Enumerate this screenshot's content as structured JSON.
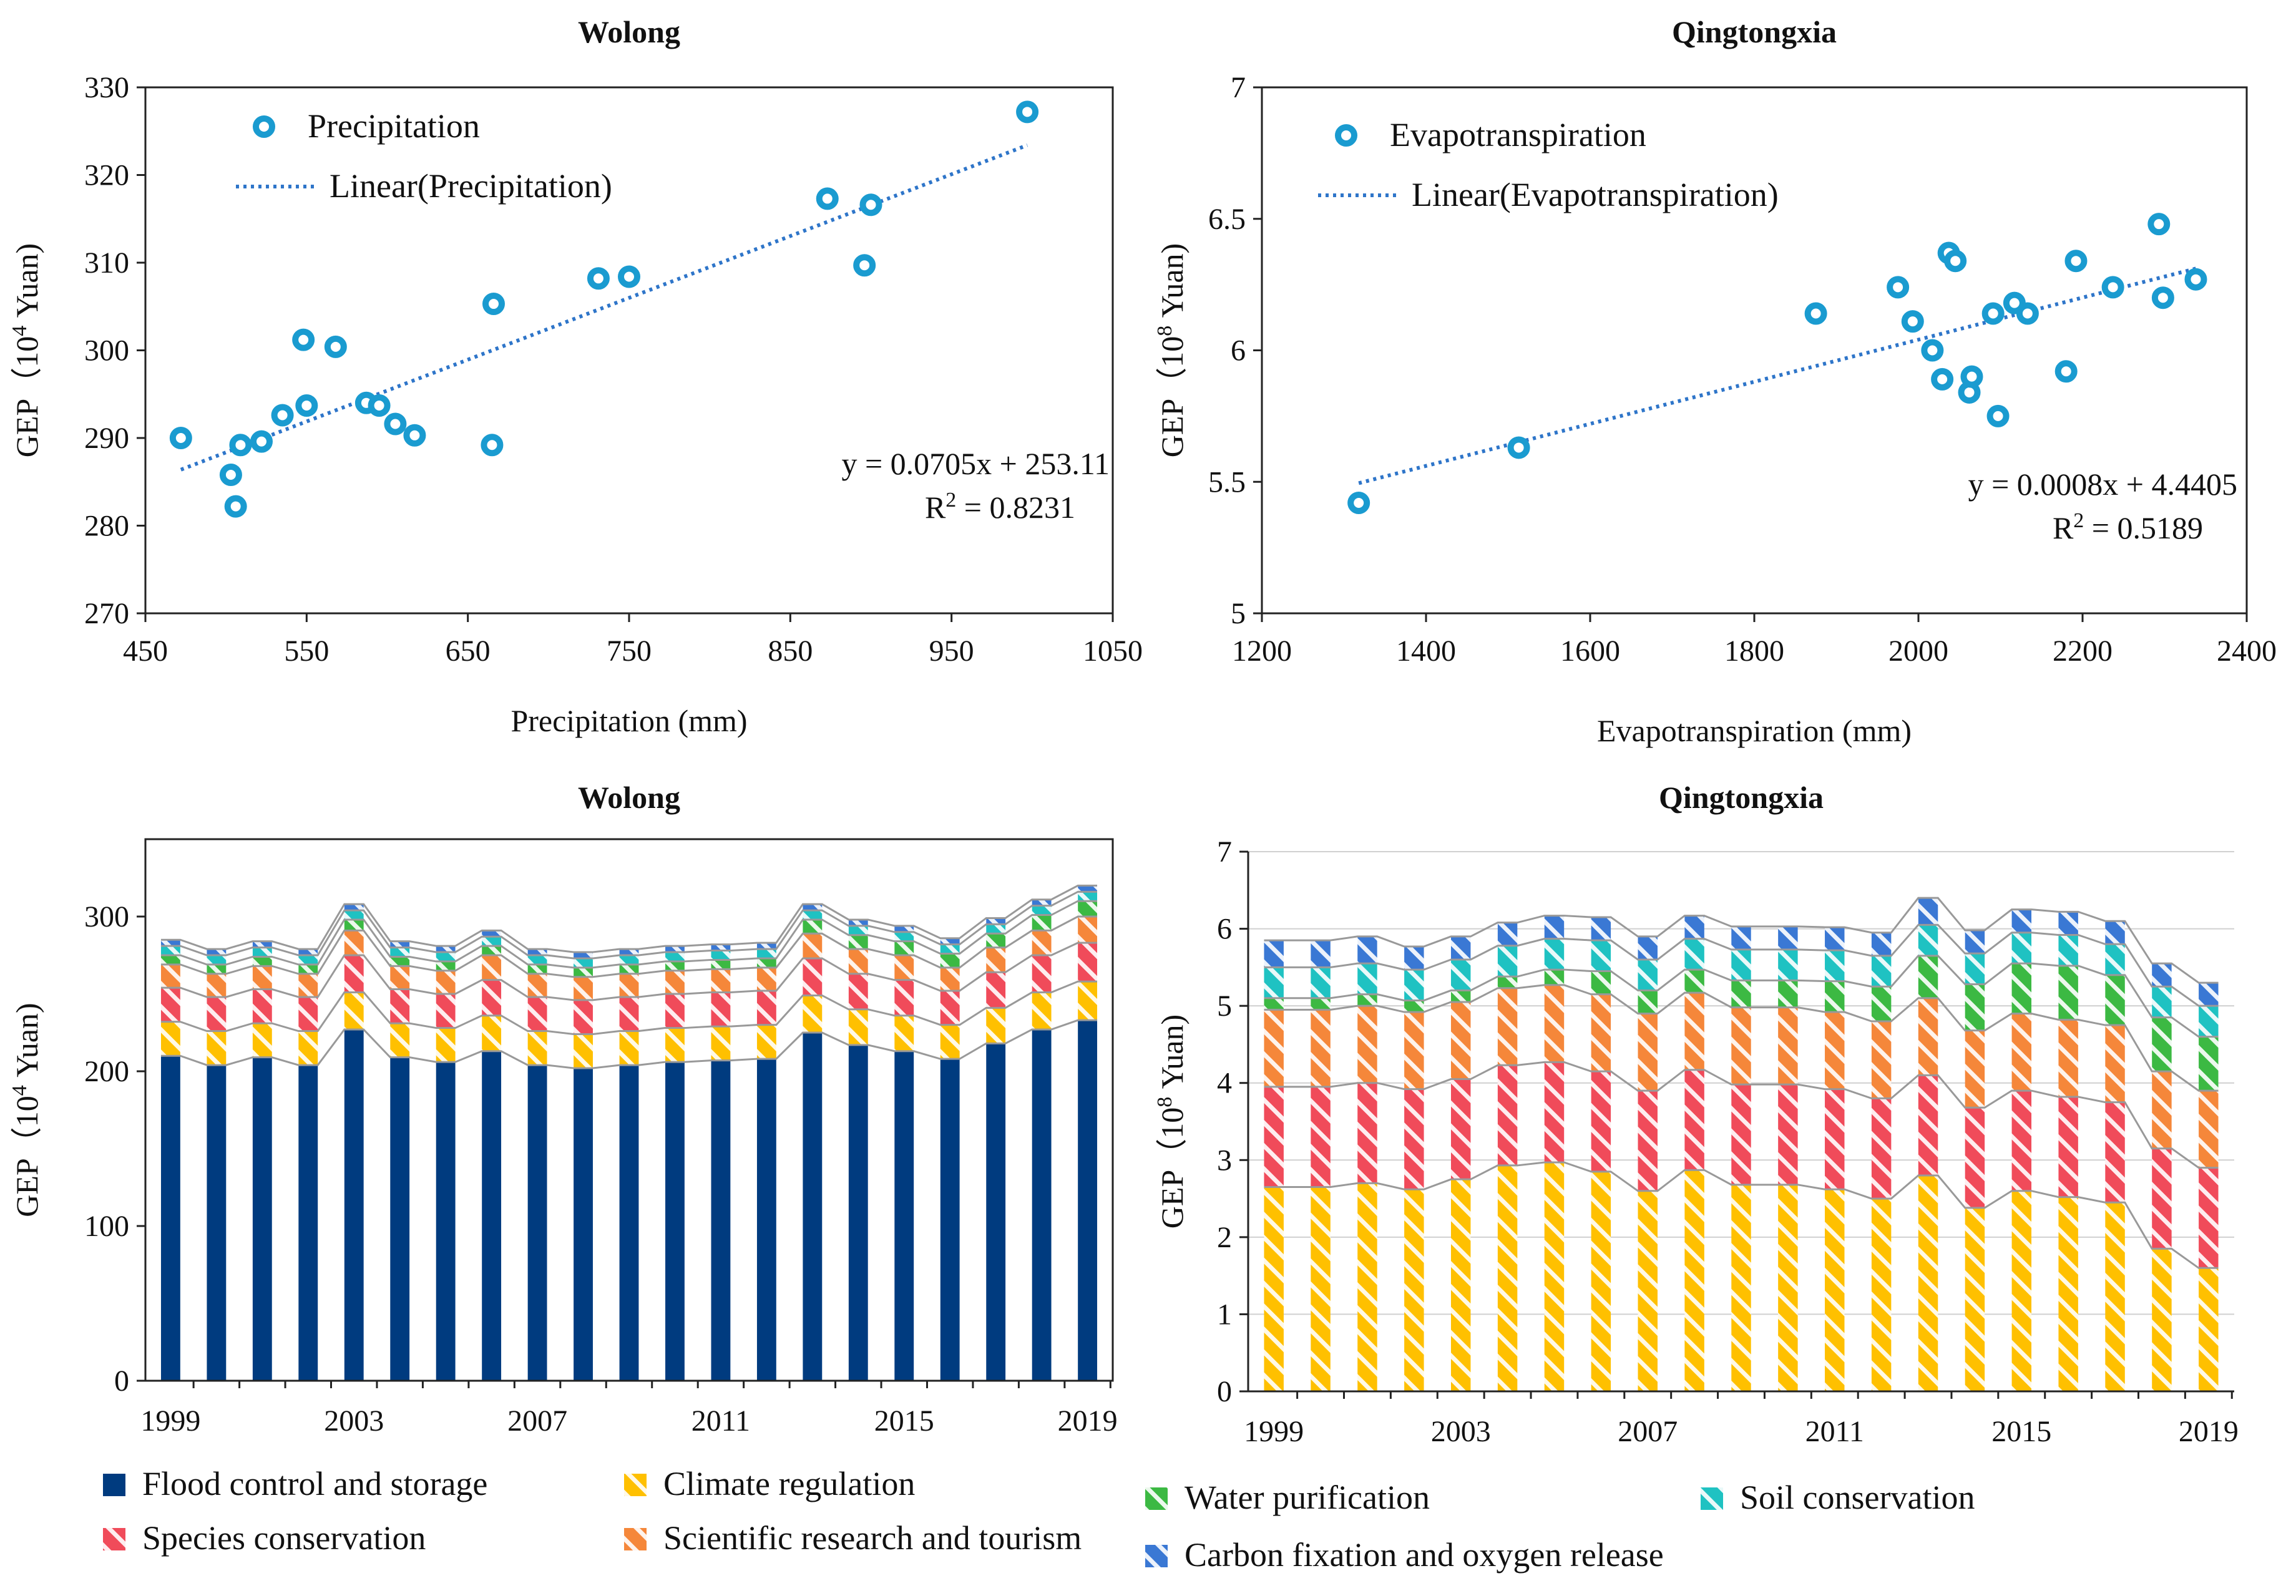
{
  "chart_data": [
    {
      "type": "scatter",
      "title": "Wolong",
      "xlabel": "Precipitation (mm)",
      "ylabel_prefix": "GEP（10",
      "ylabel_exp": "4",
      "ylabel_suffix": " Yuan)",
      "xlim": [
        450,
        1050
      ],
      "ylim": [
        270,
        330
      ],
      "xticks": [
        "450",
        "550",
        "650",
        "750",
        "850",
        "950",
        "1050"
      ],
      "yticks": [
        "270",
        "280",
        "290",
        "300",
        "310",
        "320",
        "330"
      ],
      "legend": {
        "points": "Precipitation",
        "fit": "Linear(Precipitation)"
      },
      "color": "#1a9bd0",
      "fit_color": "#2e75c9",
      "points": [
        {
          "x": 472,
          "y": 290
        },
        {
          "x": 503,
          "y": 285.8
        },
        {
          "x": 506,
          "y": 282.2
        },
        {
          "x": 509,
          "y": 289.2
        },
        {
          "x": 522,
          "y": 289.6
        },
        {
          "x": 535,
          "y": 292.6
        },
        {
          "x": 548,
          "y": 301.2
        },
        {
          "x": 550,
          "y": 293.7
        },
        {
          "x": 568,
          "y": 300.4
        },
        {
          "x": 587,
          "y": 294
        },
        {
          "x": 595,
          "y": 293.7
        },
        {
          "x": 605,
          "y": 291.6
        },
        {
          "x": 617,
          "y": 290.3
        },
        {
          "x": 665,
          "y": 289.2
        },
        {
          "x": 666,
          "y": 305.3
        },
        {
          "x": 731,
          "y": 308.2
        },
        {
          "x": 750,
          "y": 308.4
        },
        {
          "x": 873,
          "y": 317.3
        },
        {
          "x": 896,
          "y": 309.7
        },
        {
          "x": 900,
          "y": 316.6
        },
        {
          "x": 997,
          "y": 327.2
        }
      ],
      "fit": {
        "slope": 0.0705,
        "intercept": 253.11,
        "x_range": [
          472,
          997
        ]
      },
      "equation": "y = 0.0705x + 253.11",
      "r2_label": "R",
      "r2_exp": "2",
      "r2_value": " = 0.8231"
    },
    {
      "type": "scatter",
      "title": "Qingtongxia",
      "xlabel": "Evapotranspiration (mm)",
      "ylabel_prefix": "GEP（10",
      "ylabel_exp": "8",
      "ylabel_suffix": " Yuan)",
      "xlim": [
        1200,
        2400
      ],
      "ylim": [
        5,
        7
      ],
      "xticks": [
        "1200",
        "1400",
        "1600",
        "1800",
        "2000",
        "2200",
        "2400"
      ],
      "yticks": [
        "5",
        "5.5",
        "6",
        "6.5",
        "7"
      ],
      "legend": {
        "points": "Evapotranspiration",
        "fit": "Linear(Evapotranspiration)"
      },
      "color": "#1a9bd0",
      "fit_color": "#2e75c9",
      "points": [
        {
          "x": 1318,
          "y": 5.42
        },
        {
          "x": 1513,
          "y": 5.63
        },
        {
          "x": 1875,
          "y": 6.14
        },
        {
          "x": 1975,
          "y": 6.24
        },
        {
          "x": 1993,
          "y": 6.11
        },
        {
          "x": 2017,
          "y": 6.0
        },
        {
          "x": 2029,
          "y": 5.89
        },
        {
          "x": 2037,
          "y": 6.37
        },
        {
          "x": 2045,
          "y": 6.34
        },
        {
          "x": 2062,
          "y": 5.84
        },
        {
          "x": 2065,
          "y": 5.9
        },
        {
          "x": 2091,
          "y": 6.14
        },
        {
          "x": 2097,
          "y": 5.75
        },
        {
          "x": 2117,
          "y": 6.18
        },
        {
          "x": 2133,
          "y": 6.14
        },
        {
          "x": 2180,
          "y": 5.92
        },
        {
          "x": 2192,
          "y": 6.34
        },
        {
          "x": 2237,
          "y": 6.24
        },
        {
          "x": 2293,
          "y": 6.48
        },
        {
          "x": 2298,
          "y": 6.2
        },
        {
          "x": 2338,
          "y": 6.27
        }
      ],
      "fit": {
        "slope": 0.0008,
        "intercept": 4.4405,
        "x_range": [
          1318,
          2338
        ]
      },
      "equation": "y = 0.0008x + 4.4405",
      "r2_label": "R",
      "r2_exp": "2",
      "r2_value": " = 0.5189"
    },
    {
      "type": "bar",
      "stacked": true,
      "title": "Wolong",
      "ylabel_prefix": "GEP（10",
      "ylabel_exp": "4",
      "ylabel_suffix": " Yuan)",
      "ylim": [
        0,
        350
      ],
      "yticks": [
        "0",
        "100",
        "200",
        "300"
      ],
      "categories": [
        "1999",
        "2000",
        "2001",
        "2002",
        "2003",
        "2004",
        "2005",
        "2006",
        "2007",
        "2008",
        "2009",
        "2010",
        "2011",
        "2012",
        "2013",
        "2014",
        "2015",
        "2016",
        "2017",
        "2018",
        "2019"
      ],
      "xtick_labels": [
        "1999",
        "2003",
        "2007",
        "2011",
        "2015",
        "2019"
      ],
      "series": [
        {
          "name": "Flood control and storage",
          "color": "#003b7f",
          "pattern": "solid",
          "values": [
            210,
            204,
            209,
            204,
            227,
            209,
            206,
            213,
            204,
            202,
            204,
            206,
            207,
            208,
            225,
            217,
            213,
            208,
            218,
            227,
            233
          ]
        },
        {
          "name": "Climate regulation",
          "color": "#ffc000",
          "pattern": "hatch",
          "values": [
            22,
            22,
            22,
            22,
            24,
            22,
            22,
            23,
            22,
            22,
            22,
            22,
            22,
            22,
            24,
            23,
            23,
            22,
            23,
            24,
            25
          ]
        },
        {
          "name": "Species conservation",
          "color": "#f04b5a",
          "pattern": "hatch",
          "values": [
            22,
            22,
            22,
            22,
            24,
            22,
            22,
            23,
            22,
            22,
            22,
            22,
            22,
            22,
            24,
            23,
            23,
            22,
            23,
            24,
            25
          ]
        },
        {
          "name": "Scientific research and tourism",
          "color": "#f5873a",
          "pattern": "hatch",
          "values": [
            15,
            15,
            15,
            15,
            16,
            15,
            15,
            16,
            15,
            15,
            15,
            15,
            15,
            15,
            16,
            16,
            16,
            15,
            16,
            16,
            17
          ]
        },
        {
          "name": "Water purification",
          "color": "#3cb943",
          "pattern": "hatch",
          "values": [
            6,
            6,
            6,
            6,
            7,
            6,
            6,
            6,
            6,
            6,
            6,
            6,
            6,
            6,
            9,
            9,
            9,
            9,
            9,
            10,
            10
          ]
        },
        {
          "name": "Soil conservation",
          "color": "#1fc2c2",
          "pattern": "hatch",
          "values": [
            6,
            6,
            6,
            6,
            6,
            6,
            6,
            6,
            6,
            6,
            6,
            6,
            6,
            6,
            6,
            6,
            6,
            6,
            6,
            6,
            6
          ]
        },
        {
          "name": "Carbon fixation and oxygen release",
          "color": "#3a78d4",
          "pattern": "hatch",
          "values": [
            4,
            4,
            4,
            4,
            4,
            4,
            4,
            4,
            4,
            4,
            4,
            4,
            4,
            4,
            4,
            4,
            4,
            4,
            4,
            4,
            4
          ]
        }
      ]
    },
    {
      "type": "bar",
      "stacked": true,
      "title": "Qingtongxia",
      "ylabel_prefix": "GEP（10",
      "ylabel_exp": "8",
      "ylabel_suffix": " Yuan)",
      "ylim": [
        0,
        7
      ],
      "yticks": [
        "0",
        "1",
        "2",
        "3",
        "4",
        "5",
        "6",
        "7"
      ],
      "categories": [
        "1999",
        "2000",
        "2001",
        "2002",
        "2003",
        "2004",
        "2005",
        "2006",
        "2007",
        "2008",
        "2009",
        "2010",
        "2011",
        "2012",
        "2013",
        "2014",
        "2015",
        "2016",
        "2017",
        "2018",
        "2019"
      ],
      "xtick_labels": [
        "1999",
        "2003",
        "2007",
        "2011",
        "2015",
        "2019"
      ],
      "series": [
        {
          "name": "Climate regulation",
          "color": "#ffc000",
          "pattern": "hatch",
          "values": [
            2.65,
            2.65,
            2.7,
            2.62,
            2.75,
            2.93,
            2.97,
            2.85,
            2.6,
            2.87,
            2.68,
            2.68,
            2.62,
            2.5,
            2.8,
            2.38,
            2.6,
            2.52,
            2.45,
            1.85,
            1.6
          ]
        },
        {
          "name": "Species conservation",
          "color": "#f04b5a",
          "pattern": "hatch",
          "values": [
            1.3,
            1.3,
            1.3,
            1.3,
            1.3,
            1.3,
            1.3,
            1.3,
            1.3,
            1.3,
            1.3,
            1.3,
            1.3,
            1.3,
            1.3,
            1.3,
            1.3,
            1.3,
            1.3,
            1.3,
            1.3
          ]
        },
        {
          "name": "Scientific research and tourism",
          "color": "#f5873a",
          "pattern": "hatch",
          "values": [
            1.0,
            1.0,
            1.0,
            1.0,
            1.0,
            1.0,
            1.0,
            1.0,
            1.0,
            1.0,
            1.0,
            1.0,
            1.0,
            1.0,
            1.0,
            1.0,
            1.0,
            1.0,
            1.0,
            1.0,
            1.0
          ]
        },
        {
          "name": "Water purification",
          "color": "#3cb943",
          "pattern": "hatch",
          "values": [
            0.15,
            0.15,
            0.15,
            0.15,
            0.15,
            0.15,
            0.2,
            0.3,
            0.3,
            0.3,
            0.35,
            0.35,
            0.4,
            0.45,
            0.55,
            0.6,
            0.65,
            0.7,
            0.65,
            0.7,
            0.7
          ]
        },
        {
          "name": "Soil conservation",
          "color": "#1fc2c2",
          "pattern": "hatch",
          "values": [
            0.4,
            0.4,
            0.4,
            0.4,
            0.4,
            0.4,
            0.4,
            0.4,
            0.4,
            0.4,
            0.4,
            0.4,
            0.4,
            0.4,
            0.4,
            0.4,
            0.4,
            0.4,
            0.4,
            0.4,
            0.4
          ]
        },
        {
          "name": "Carbon fixation and oxygen release",
          "color": "#3a78d4",
          "pattern": "hatch",
          "values": [
            0.35,
            0.35,
            0.35,
            0.3,
            0.3,
            0.3,
            0.3,
            0.3,
            0.3,
            0.3,
            0.3,
            0.3,
            0.3,
            0.3,
            0.35,
            0.3,
            0.3,
            0.3,
            0.3,
            0.3,
            0.3
          ]
        }
      ]
    }
  ],
  "legend_items": [
    {
      "name": "Flood control and storage",
      "color": "#003b7f",
      "pattern": "solid"
    },
    {
      "name": "Climate regulation",
      "color": "#ffc000",
      "pattern": "hatch"
    },
    {
      "name": "Species conservation",
      "color": "#f04b5a",
      "pattern": "hatch"
    },
    {
      "name": "Scientific research and tourism",
      "color": "#f5873a",
      "pattern": "hatch"
    },
    {
      "name": "Water purification",
      "color": "#3cb943",
      "pattern": "hatch"
    },
    {
      "name": "Soil conservation",
      "color": "#1fc2c2",
      "pattern": "hatch"
    },
    {
      "name": "Carbon fixation and oxygen release",
      "color": "#3a78d4",
      "pattern": "hatch"
    }
  ]
}
